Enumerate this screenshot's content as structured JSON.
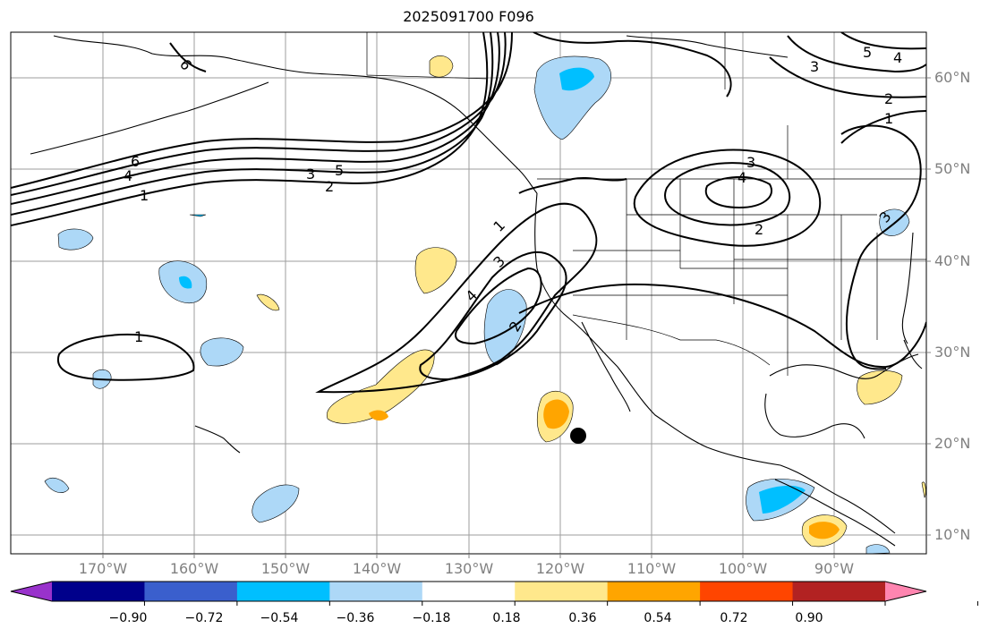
{
  "title": "2025091700 F096",
  "lat_labels": [
    "60°N",
    "50°N",
    "40°N",
    "30°N",
    "20°N",
    "10°N"
  ],
  "lon_labels": [
    "170°W",
    "160°W",
    "150°W",
    "140°W",
    "130°W",
    "120°W",
    "110°W",
    "100°W",
    "90°W"
  ],
  "contour_labels": [
    "6",
    "4",
    "1",
    "6",
    "5",
    "3",
    "2",
    "1",
    "3",
    "4",
    "2",
    "3",
    "4",
    "1",
    "3",
    "2",
    "1",
    "2",
    "3",
    "5",
    "4"
  ],
  "colorbar": {
    "ticks": [
      "−0.90",
      "−0.72",
      "−0.54",
      "−0.36",
      "−0.18",
      "0.18",
      "0.36",
      "0.54",
      "0.72",
      "0.90"
    ],
    "colors": [
      "#9932cc",
      "#00008b",
      "#3a5fcd",
      "#00bfff",
      "#add8f7",
      "#ffffff",
      "#ffe88c",
      "#ffa500",
      "#ff4500",
      "#b22222",
      "#ff85b0"
    ]
  },
  "colors": {
    "contour": "#000000",
    "grid": "#9e9e9e",
    "label": "#808080",
    "marker": "#000000"
  }
}
